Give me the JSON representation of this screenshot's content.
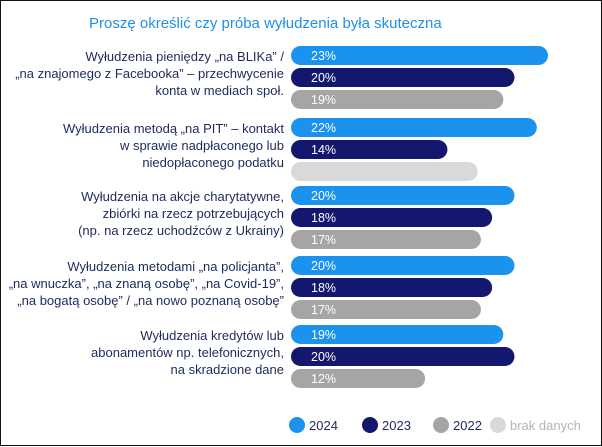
{
  "chart_data": {
    "type": "bar",
    "orientation": "horizontal",
    "title": "Proszę określić czy próba wyłudzenia była skuteczna",
    "categories": [
      [
        "Wyłudzenia pieniędzy  „na BLIKa” /",
        "„na znajomego z Facebooka” – przechwycenie",
        "konta w mediach społ."
      ],
      [
        "Wyłudzenia metodą „na PIT” – kontakt",
        "w sprawie nadpłaconego lub",
        "niedopłaconego podatku"
      ],
      [
        "Wyłudzenia na akcje charytatywne,",
        "zbiórki na rzecz potrzebujących",
        "(np. na rzecz uchodźców z Ukrainy)"
      ],
      [
        "Wyłudzenia metodami „na policjanta”,",
        "„na wnuczka”, „na znaną osobę”, „na Covid-19”,",
        "„na bogatą osobę” / „na nowo poznaną osobę”"
      ],
      [
        "Wyłudzenia kredytów lub",
        "abonamentów np. telefonicznych,",
        "na skradzione dane"
      ]
    ],
    "series": [
      {
        "name": "2024",
        "color": "#1b93ee",
        "values": [
          23,
          22,
          20,
          20,
          19
        ],
        "labels": [
          "23%",
          "22%",
          "20%",
          "20%",
          "19%"
        ]
      },
      {
        "name": "2023",
        "color": "#13186e",
        "values": [
          20,
          14,
          18,
          18,
          20
        ],
        "labels": [
          "20%",
          "14%",
          "18%",
          "18%",
          "20%"
        ]
      },
      {
        "name": "2022",
        "color": "#a5a5a5",
        "values": [
          19,
          null,
          17,
          17,
          12
        ],
        "labels": [
          "19%",
          "",
          "17%",
          "17%",
          "12%"
        ]
      }
    ],
    "missing": {
      "name": "brak danych",
      "color": "#d9d9d9"
    },
    "xlim": [
      0,
      23
    ],
    "grid": false,
    "legend": "bottom-right"
  }
}
